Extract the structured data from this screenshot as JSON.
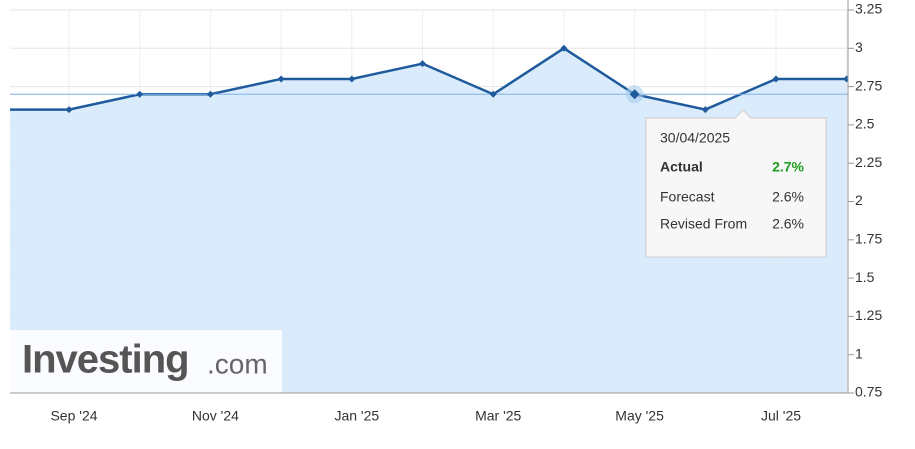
{
  "chart_data": {
    "type": "area",
    "categories": [
      null,
      "Sep '24",
      null,
      "Nov '24",
      null,
      "Jan '25",
      null,
      "Mar '25",
      null,
      "May '25",
      null,
      "Jul '25",
      null
    ],
    "series": [
      {
        "name": "Actual",
        "color": "#1f5b9c",
        "values": [
          2.6,
          2.6,
          2.7,
          2.7,
          2.8,
          2.8,
          2.9,
          2.7,
          3.0,
          2.7,
          2.6,
          2.8,
          2.8
        ]
      }
    ],
    "ylim": [
      0.75,
      3.25
    ],
    "yticks": [
      0.75,
      1,
      1.25,
      1.5,
      1.75,
      2,
      2.25,
      2.5,
      2.75,
      3,
      3.25
    ],
    "grid": true,
    "tooltip": {
      "date": "30/04/2025",
      "rows": [
        {
          "label": "Actual",
          "value": "2.7%"
        },
        {
          "label": "Forecast",
          "value": "2.6%"
        },
        {
          "label": "Revised From",
          "value": "2.6%"
        }
      ]
    },
    "watermark": {
      "brand": "Investing",
      "suffix": ".com"
    }
  }
}
